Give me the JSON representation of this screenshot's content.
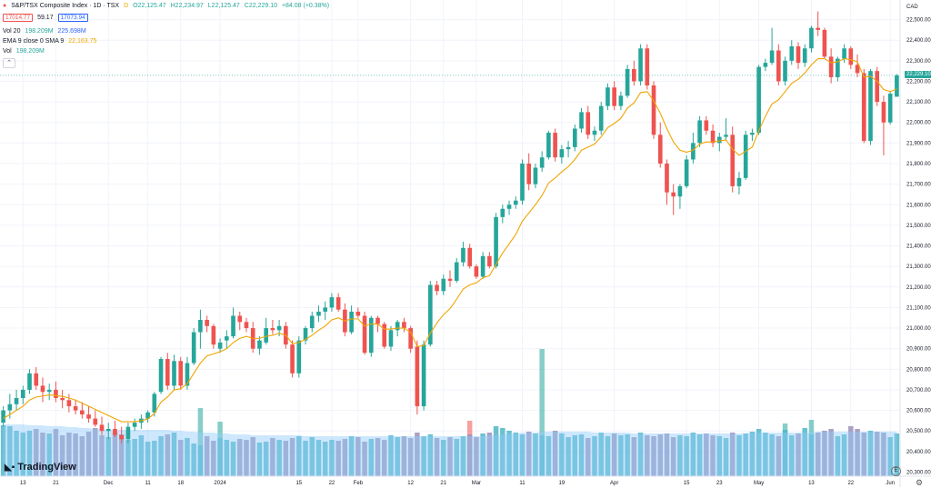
{
  "header": {
    "symbol_title": "S&P/TSX Composite Index · 1D · TSX",
    "flag_label": "D",
    "ohlc": {
      "o": "O22,125.47",
      "h": "H22,234.97",
      "l": "L22,125.47",
      "c": "C22,229.10",
      "chg": "+84.08 (+0.38%)"
    },
    "bid": "17014.77",
    "spread": "59.17",
    "ask": "17073.94",
    "indicators": [
      {
        "label": "Vol 20",
        "v1": "198.209M",
        "v2": "225.698M"
      },
      {
        "label": "EMA 9 close 0 SMA 9",
        "v1": "22,163.75"
      },
      {
        "label": "Vol",
        "v1": "198.209M"
      }
    ],
    "collapse_icon": "chevron-up-icon"
  },
  "axis": {
    "currency": "CAD",
    "last_price": "22,229.10",
    "y_ticks": [
      "22,500.00",
      "22,400.00",
      "22,300.00",
      "22,200.00",
      "22,100.00",
      "22,000.00",
      "21,900.00",
      "21,800.00",
      "21,700.00",
      "21,600.00",
      "21,500.00",
      "21,400.00",
      "21,300.00",
      "21,200.00",
      "21,100.00",
      "21,000.00",
      "20,900.00",
      "20,800.00",
      "20,700.00",
      "20,600.00",
      "20,500.00",
      "20,400.00",
      "20,300.00"
    ],
    "x_ticks": [
      "13",
      "21",
      "Dec",
      "11",
      "18",
      "2024",
      "15",
      "22",
      "Feb",
      "12",
      "21",
      "Mar",
      "11",
      "19",
      "Apr",
      "15",
      "23",
      "May",
      "13",
      "22",
      "Jun"
    ]
  },
  "branding": {
    "logo_text": "TradingView",
    "e_badge": "E",
    "gear_icon": "gear-icon"
  },
  "colors": {
    "up": "#26a69a",
    "down": "#ef5350",
    "ema": "#f0a500",
    "vol_ma": "#90caf9",
    "grid": "#f0f3fa"
  },
  "chart_data": {
    "type": "candlestick",
    "title": "S&P/TSX Composite Index · 1D · TSX",
    "ylim": [
      20280,
      22560
    ],
    "ylabel": "CAD",
    "x_tick_positions": [
      3,
      8,
      16,
      22,
      27,
      33,
      45,
      50,
      54,
      62,
      67,
      72,
      79,
      85,
      93,
      104,
      109,
      115,
      123,
      129,
      135
    ],
    "ohlc": [
      [
        20540,
        20620,
        20520,
        20600
      ],
      [
        20600,
        20680,
        20560,
        20630
      ],
      [
        20630,
        20700,
        20600,
        20660
      ],
      [
        20660,
        20720,
        20630,
        20700
      ],
      [
        20700,
        20800,
        20680,
        20780
      ],
      [
        20780,
        20810,
        20700,
        20720
      ],
      [
        20720,
        20760,
        20640,
        20690
      ],
      [
        20690,
        20730,
        20650,
        20700
      ],
      [
        20700,
        20740,
        20640,
        20660
      ],
      [
        20660,
        20700,
        20610,
        20650
      ],
      [
        20650,
        20680,
        20590,
        20620
      ],
      [
        20620,
        20650,
        20580,
        20600
      ],
      [
        20600,
        20640,
        20560,
        20580
      ],
      [
        20580,
        20620,
        20540,
        20560
      ],
      [
        20560,
        20600,
        20520,
        20530
      ],
      [
        20530,
        20570,
        20480,
        20500
      ],
      [
        20500,
        20540,
        20460,
        20510
      ],
      [
        20510,
        20550,
        20470,
        20480
      ],
      [
        20480,
        20520,
        20440,
        20460
      ],
      [
        20460,
        20540,
        20440,
        20520
      ],
      [
        20520,
        20560,
        20500,
        20540
      ],
      [
        20540,
        20580,
        20510,
        20560
      ],
      [
        20560,
        20600,
        20540,
        20590
      ],
      [
        20590,
        20690,
        20570,
        20680
      ],
      [
        20690,
        20860,
        20680,
        20850
      ],
      [
        20850,
        20880,
        20700,
        20720
      ],
      [
        20720,
        20870,
        20700,
        20840
      ],
      [
        20840,
        20860,
        20700,
        20720
      ],
      [
        20720,
        20860,
        20700,
        20830
      ],
      [
        20830,
        21000,
        20820,
        20980
      ],
      [
        20980,
        21090,
        20900,
        21040
      ],
      [
        21040,
        21060,
        20980,
        21010
      ],
      [
        21010,
        21020,
        20900,
        20920
      ],
      [
        20900,
        20950,
        20880,
        20930
      ],
      [
        20940,
        20990,
        20900,
        20960
      ],
      [
        20960,
        21100,
        20950,
        21060
      ],
      [
        21060,
        21080,
        20990,
        21030
      ],
      [
        21030,
        21050,
        20980,
        21000
      ],
      [
        21000,
        21030,
        20880,
        20900
      ],
      [
        20900,
        20960,
        20870,
        20940
      ],
      [
        20930,
        21050,
        20920,
        21000
      ],
      [
        21000,
        21040,
        20970,
        20990
      ],
      [
        20990,
        21040,
        20960,
        21010
      ],
      [
        21010,
        21030,
        20900,
        20920
      ],
      [
        20920,
        20940,
        20760,
        20780
      ],
      [
        20780,
        20960,
        20760,
        20940
      ],
      [
        20940,
        21010,
        20920,
        21000
      ],
      [
        21000,
        21080,
        20980,
        21060
      ],
      [
        21060,
        21110,
        21030,
        21080
      ],
      [
        21080,
        21130,
        21040,
        21100
      ],
      [
        21100,
        21170,
        21080,
        21150
      ],
      [
        21150,
        21170,
        21080,
        21090
      ],
      [
        21090,
        21120,
        20960,
        20980
      ],
      [
        20980,
        21110,
        20970,
        21080
      ],
      [
        21080,
        21100,
        21050,
        21060
      ],
      [
        21060,
        21080,
        20870,
        20880
      ],
      [
        20880,
        21060,
        20860,
        21050
      ],
      [
        21050,
        21060,
        20980,
        21020
      ],
      [
        21020,
        21030,
        20900,
        20910
      ],
      [
        20910,
        21010,
        20890,
        20990
      ],
      [
        20990,
        21040,
        20960,
        21030
      ],
      [
        21030,
        21050,
        20980,
        21000
      ],
      [
        21000,
        21010,
        20880,
        20900
      ],
      [
        20910,
        20940,
        20580,
        20620
      ],
      [
        20620,
        20940,
        20600,
        20920
      ],
      [
        20920,
        21230,
        20910,
        21210
      ],
      [
        21210,
        21230,
        21160,
        21180
      ],
      [
        21180,
        21260,
        21160,
        21240
      ],
      [
        21240,
        21280,
        21200,
        21230
      ],
      [
        21230,
        21340,
        21220,
        21320
      ],
      [
        21320,
        21420,
        21300,
        21390
      ],
      [
        21390,
        21410,
        21290,
        21300
      ],
      [
        21300,
        21310,
        21240,
        21250
      ],
      [
        21250,
        21370,
        21240,
        21350
      ],
      [
        21350,
        21370,
        21290,
        21300
      ],
      [
        21300,
        21560,
        21290,
        21540
      ],
      [
        21540,
        21600,
        21510,
        21580
      ],
      [
        21580,
        21620,
        21550,
        21600
      ],
      [
        21600,
        21640,
        21580,
        21620
      ],
      [
        21620,
        21820,
        21600,
        21800
      ],
      [
        21800,
        21850,
        21670,
        21700
      ],
      [
        21700,
        21800,
        21680,
        21780
      ],
      [
        21780,
        21860,
        21760,
        21830
      ],
      [
        21830,
        21960,
        21820,
        21950
      ],
      [
        21950,
        21970,
        21810,
        21830
      ],
      [
        21830,
        21890,
        21800,
        21870
      ],
      [
        21870,
        21910,
        21830,
        21880
      ],
      [
        21880,
        21990,
        21860,
        21970
      ],
      [
        21970,
        22070,
        21950,
        22050
      ],
      [
        22050,
        22080,
        21920,
        21940
      ],
      [
        21940,
        21980,
        21910,
        21960
      ],
      [
        21960,
        22100,
        21940,
        22080
      ],
      [
        22080,
        22190,
        22060,
        22170
      ],
      [
        22170,
        22200,
        22060,
        22080
      ],
      [
        22080,
        22150,
        22060,
        22130
      ],
      [
        22130,
        22280,
        22120,
        22260
      ],
      [
        22260,
        22300,
        22180,
        22200
      ],
      [
        22200,
        22380,
        22180,
        22360
      ],
      [
        22360,
        22380,
        22160,
        22180
      ],
      [
        22180,
        22200,
        21920,
        21940
      ],
      [
        21940,
        22000,
        21780,
        21800
      ],
      [
        21800,
        21820,
        21600,
        21660
      ],
      [
        21660,
        21700,
        21550,
        21640
      ],
      [
        21640,
        21700,
        21580,
        21690
      ],
      [
        21690,
        21840,
        21680,
        21820
      ],
      [
        21820,
        21950,
        21800,
        21900
      ],
      [
        21900,
        22030,
        21880,
        22010
      ],
      [
        22010,
        22030,
        21940,
        21960
      ],
      [
        21960,
        21990,
        21880,
        21900
      ],
      [
        21900,
        21950,
        21860,
        21930
      ],
      [
        21930,
        22020,
        21910,
        21940
      ],
      [
        21940,
        21980,
        21660,
        21690
      ],
      [
        21690,
        21760,
        21650,
        21730
      ],
      [
        21730,
        21960,
        21720,
        21940
      ],
      [
        21940,
        21970,
        21910,
        21950
      ],
      [
        21950,
        22280,
        21940,
        22270
      ],
      [
        22270,
        22310,
        22250,
        22290
      ],
      [
        22290,
        22460,
        22280,
        22350
      ],
      [
        22350,
        22380,
        22180,
        22200
      ],
      [
        22200,
        22320,
        22180,
        22300
      ],
      [
        22300,
        22400,
        22280,
        22370
      ],
      [
        22370,
        22390,
        22260,
        22290
      ],
      [
        22290,
        22380,
        22270,
        22360
      ],
      [
        22360,
        22470,
        22340,
        22460
      ],
      [
        22460,
        22540,
        22420,
        22450
      ],
      [
        22450,
        22460,
        22310,
        22320
      ],
      [
        22320,
        22360,
        22190,
        22220
      ],
      [
        22220,
        22320,
        22200,
        22310
      ],
      [
        22310,
        22380,
        22290,
        22360
      ],
      [
        22360,
        22370,
        22260,
        22280
      ],
      [
        22280,
        22330,
        22220,
        22240
      ],
      [
        22240,
        22260,
        21900,
        21910
      ],
      [
        21910,
        22260,
        21890,
        22250
      ],
      [
        22250,
        22270,
        22080,
        22100
      ],
      [
        22100,
        22130,
        21840,
        22000
      ],
      [
        22000,
        22150,
        21990,
        22140
      ],
      [
        22125,
        22235,
        22125,
        22229
      ]
    ],
    "ema9": [
      20560,
      20580,
      20600,
      20620,
      20650,
      20665,
      20670,
      20675,
      20672,
      20668,
      20660,
      20650,
      20635,
      20620,
      20605,
      20590,
      20575,
      20560,
      20545,
      20545,
      20545,
      20550,
      20558,
      20585,
      20640,
      20665,
      20700,
      20705,
      20730,
      20780,
      20830,
      20865,
      20875,
      20885,
      20900,
      20930,
      20950,
      20960,
      20950,
      20950,
      20960,
      20965,
      20975,
      20965,
      20925,
      20930,
      20945,
      20965,
      20990,
      21010,
      21040,
      21050,
      21035,
      21045,
      21045,
      21010,
      21020,
      21020,
      20995,
      20995,
      21000,
      21000,
      20980,
      20910,
      20915,
      20975,
      21025,
      21065,
      21095,
      21140,
      21190,
      21210,
      21220,
      21245,
      21255,
      21310,
      21365,
      21410,
      21455,
      21520,
      21560,
      21600,
      21645,
      21705,
      21730,
      21760,
      21785,
      21820,
      21865,
      21880,
      21895,
      21930,
      21975,
      21995,
      22020,
      22070,
      22095,
      22145,
      22150,
      22105,
      22045,
      21970,
      21905,
      21865,
      21855,
      21865,
      21895,
      21905,
      21905,
      21910,
      21915,
      21870,
      21840,
      21860,
      21880,
      21960,
      22030,
      22090,
      22110,
      22150,
      22190,
      22210,
      22240,
      22280,
      22310,
      22310,
      22290,
      22295,
      22310,
      22305,
      22295,
      22220,
      22225,
      22200,
      22160,
      22150,
      22163
    ],
    "volume": [
      56,
      55,
      50,
      48,
      50,
      52,
      48,
      47,
      52,
      45,
      48,
      47,
      44,
      49,
      53,
      45,
      43,
      48,
      46,
      40,
      41,
      45,
      38,
      39,
      44,
      46,
      48,
      40,
      42,
      36,
      34,
      44,
      39,
      42,
      40,
      38,
      41,
      40,
      43,
      37,
      38,
      42,
      40,
      39,
      42,
      44,
      39,
      43,
      40,
      38,
      40,
      39,
      41,
      44,
      43,
      38,
      41,
      42,
      40,
      45,
      43,
      44,
      42,
      48,
      44,
      46,
      42,
      40,
      43,
      41,
      44,
      46,
      43,
      47,
      48,
      55,
      53,
      50,
      48,
      46,
      49,
      47,
      45,
      44,
      50,
      47,
      43,
      45,
      46,
      42,
      44,
      48,
      44,
      47,
      45,
      46,
      43,
      48,
      45,
      44,
      46,
      47,
      43,
      45,
      44,
      48,
      46,
      47,
      45,
      44,
      42,
      48,
      45,
      47,
      49,
      52,
      48,
      46,
      44,
      51,
      45,
      47,
      53,
      46,
      48,
      50,
      52,
      44,
      46,
      55,
      52,
      48,
      50,
      49,
      48,
      43,
      47
    ],
    "volume_spikes": {
      "30": 75,
      "33": 60,
      "71": 61,
      "82": 140,
      "119": 58,
      "123": 62
    },
    "volume_ma": [
      57,
      57,
      57,
      57,
      56,
      56,
      56,
      55,
      55,
      55,
      54,
      54,
      53,
      53,
      52,
      52,
      51,
      51,
      51,
      51,
      51,
      51,
      51,
      51,
      51,
      51,
      50,
      50,
      49,
      49,
      48,
      48,
      48,
      47,
      47,
      46,
      46,
      46,
      45,
      45,
      45,
      45,
      45,
      45,
      45,
      45,
      44,
      44,
      44,
      44,
      44,
      44,
      44,
      44,
      44,
      44,
      44,
      44,
      44,
      44,
      44,
      44,
      44,
      44,
      44,
      44,
      44,
      44,
      44,
      44,
      44,
      44,
      44,
      44,
      45,
      45,
      46,
      47,
      47,
      48,
      48,
      48,
      49,
      49,
      49,
      49,
      49,
      49,
      49,
      49,
      48,
      48,
      48,
      48,
      48,
      48,
      47,
      47,
      47,
      47,
      47,
      47,
      47,
      47,
      47,
      47,
      47,
      47,
      47,
      47,
      47,
      47,
      47,
      47,
      48,
      48,
      48,
      48,
      48,
      48,
      48,
      48,
      48,
      48,
      49,
      49,
      49,
      49,
      49,
      49,
      49,
      49,
      49,
      49,
      49,
      49,
      49
    ]
  }
}
